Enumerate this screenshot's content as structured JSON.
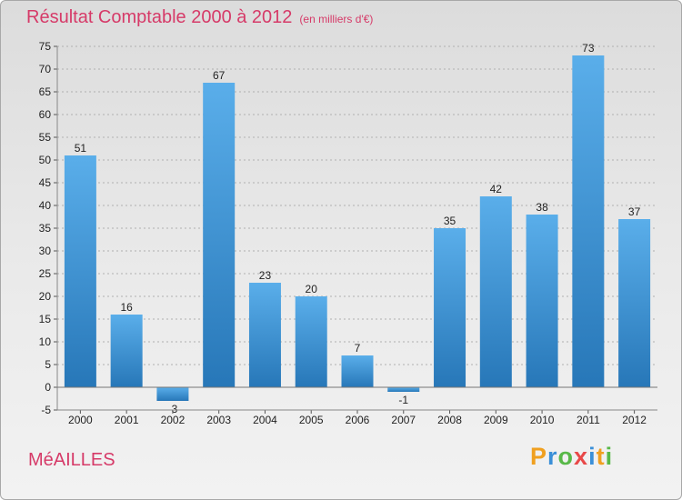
{
  "header": {
    "title": "Résultat Comptable 2000 à 2012",
    "subtitle": "(en milliers d'€)"
  },
  "footer": {
    "commune": "MéAILLES",
    "logo_letters": [
      "P",
      "r",
      "o",
      "x",
      "i",
      "t",
      "i"
    ]
  },
  "colors": {
    "title": "#d63a68",
    "bar_top": "#5aaeea",
    "bar_bottom": "#2777b8",
    "grid": "#b0b0b0",
    "logo": [
      "#f0a020",
      "#3a8fd8",
      "#58b848",
      "#e84848",
      "#3a8fd8",
      "#f0a020",
      "#58b848"
    ]
  },
  "chart_data": {
    "type": "bar",
    "title": "Résultat Comptable 2000 à 2012",
    "subtitle": "(en milliers d'€)",
    "categories": [
      "2000",
      "2001",
      "2002",
      "2003",
      "2004",
      "2005",
      "2006",
      "2007",
      "2008",
      "2009",
      "2010",
      "2011",
      "2012"
    ],
    "values": [
      51,
      16,
      -3,
      67,
      23,
      20,
      7,
      -1,
      35,
      42,
      38,
      73,
      37
    ],
    "ylim": [
      -5,
      75
    ],
    "yticks": [
      -5,
      0,
      5,
      10,
      15,
      20,
      25,
      30,
      35,
      40,
      45,
      50,
      55,
      60,
      65,
      70,
      75
    ],
    "grid": true,
    "data_labels": true
  }
}
